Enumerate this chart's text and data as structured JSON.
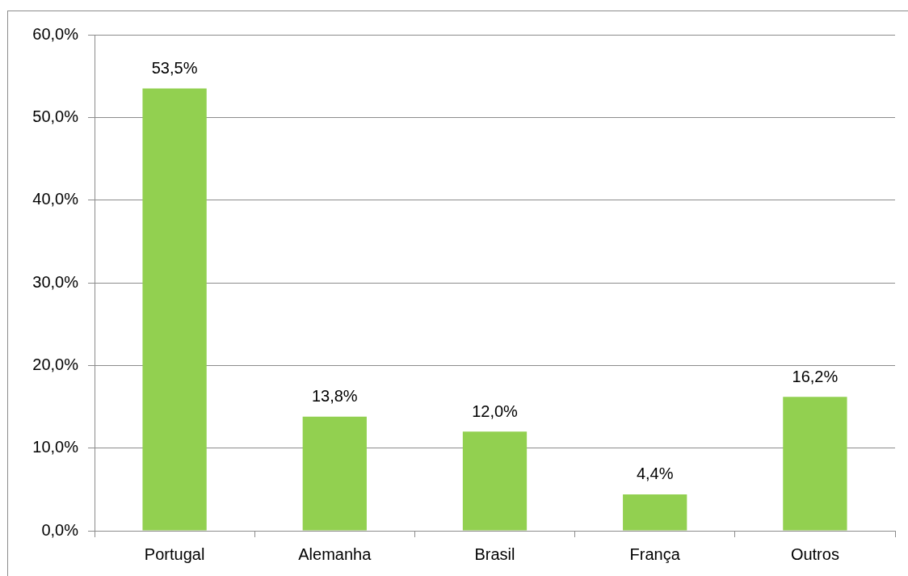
{
  "chart_data": {
    "type": "bar",
    "categories": [
      "Portugal",
      "Alemanha",
      "Brasil",
      "França",
      "Outros"
    ],
    "values": [
      53.5,
      13.8,
      12.0,
      4.4,
      16.2
    ],
    "color": "#92d050",
    "value_labels": [
      "53,5%",
      "13,8%",
      "12,0%",
      "4,4%",
      "16,2%"
    ],
    "ylim": [
      0,
      60
    ],
    "yticks": [
      {
        "value": 0,
        "label": "0,0%"
      },
      {
        "value": 10,
        "label": "10,0%"
      },
      {
        "value": 20,
        "label": "20,0%"
      },
      {
        "value": 30,
        "label": "30,0%"
      },
      {
        "value": 40,
        "label": "40,0%"
      },
      {
        "value": 50,
        "label": "50,0%"
      },
      {
        "value": 60,
        "label": "60,0%"
      }
    ],
    "grid": "y"
  }
}
